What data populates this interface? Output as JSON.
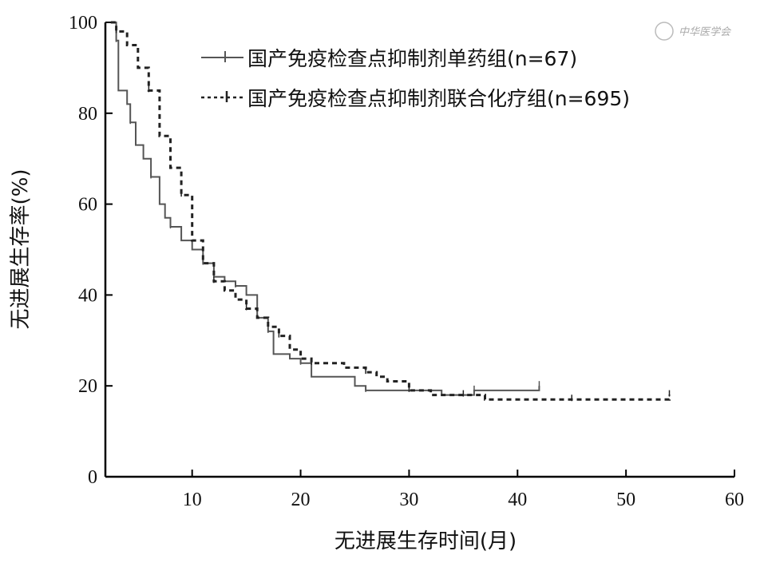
{
  "chart_data": {
    "type": "line",
    "title": "",
    "xlabel": "无进展生存时间(月)",
    "ylabel": "无进展生存率(%)",
    "xlim": [
      2,
      60
    ],
    "ylim": [
      0,
      100
    ],
    "xticks": [
      10,
      20,
      30,
      40,
      50,
      60
    ],
    "yticks": [
      0,
      20,
      40,
      60,
      80,
      100
    ],
    "grid": false,
    "legend": "top-right",
    "series": [
      {
        "name": "国产免疫检查点抑制剂单药组(n=67)",
        "line_style": "solid",
        "color": "#555555",
        "points": [
          [
            2.5,
            100
          ],
          [
            3,
            96
          ],
          [
            3.2,
            85
          ],
          [
            4,
            82
          ],
          [
            4.3,
            78
          ],
          [
            4.8,
            73
          ],
          [
            5.5,
            70
          ],
          [
            6.2,
            66
          ],
          [
            7,
            60
          ],
          [
            7.5,
            57
          ],
          [
            8,
            55
          ],
          [
            9,
            52
          ],
          [
            10,
            50
          ],
          [
            11,
            47
          ],
          [
            12,
            44
          ],
          [
            13,
            43
          ],
          [
            14,
            42
          ],
          [
            15,
            40
          ],
          [
            16,
            35
          ],
          [
            17,
            32
          ],
          [
            17.5,
            27
          ],
          [
            19,
            26
          ],
          [
            20,
            25
          ],
          [
            21,
            22
          ],
          [
            25,
            20
          ],
          [
            26,
            19
          ],
          [
            30,
            19
          ],
          [
            33,
            18
          ],
          [
            36,
            19
          ],
          [
            40,
            19
          ],
          [
            42,
            19
          ],
          [
            42,
            20
          ]
        ]
      },
      {
        "name": "国产免疫检查点抑制剂联合化疗组(n=695)",
        "line_style": "dashed",
        "color": "#222222",
        "points": [
          [
            2.5,
            100
          ],
          [
            3,
            98
          ],
          [
            4,
            95
          ],
          [
            5,
            90
          ],
          [
            6,
            85
          ],
          [
            7,
            75
          ],
          [
            8,
            68
          ],
          [
            9,
            62
          ],
          [
            10,
            52
          ],
          [
            11,
            47
          ],
          [
            12,
            43
          ],
          [
            13,
            41
          ],
          [
            14,
            39
          ],
          [
            15,
            37
          ],
          [
            16,
            35
          ],
          [
            17,
            33
          ],
          [
            18,
            31
          ],
          [
            19,
            28
          ],
          [
            20,
            26
          ],
          [
            21,
            25
          ],
          [
            22,
            25
          ],
          [
            24,
            24
          ],
          [
            26,
            23
          ],
          [
            27,
            22
          ],
          [
            28,
            21
          ],
          [
            30,
            19
          ],
          [
            32,
            18
          ],
          [
            33,
            18
          ],
          [
            35,
            18
          ],
          [
            37,
            17
          ],
          [
            40,
            17
          ],
          [
            45,
            17
          ],
          [
            50,
            17
          ],
          [
            54,
            17
          ],
          [
            54,
            18
          ]
        ]
      }
    ]
  },
  "watermark": "中华医学会"
}
